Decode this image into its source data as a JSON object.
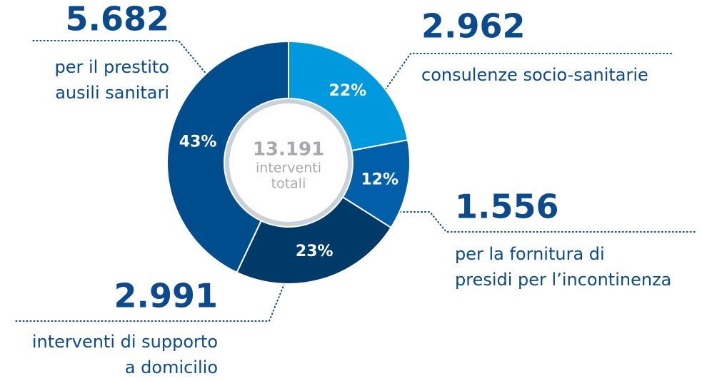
{
  "chart_data": {
    "type": "pie",
    "values": [
      22,
      12,
      23,
      43
    ],
    "value_labels": [
      "22%",
      "12%",
      "23%",
      "43%"
    ],
    "colors": [
      "#0099dd",
      "#005fa8",
      "#003a68",
      "#004d8e"
    ],
    "center_total": "13.191",
    "center_lines": [
      "interventi",
      "totali"
    ],
    "annotations": [
      {
        "number": "2.962",
        "lines": [
          "consulenze socio-sanitarie"
        ]
      },
      {
        "number": "1.556",
        "lines": [
          "per la fornitura di",
          "presidi per l’incontinenza"
        ]
      },
      {
        "number": "2.991",
        "lines": [
          "interventi di supporto",
          "a domicilio"
        ]
      },
      {
        "number": "5.682",
        "lines": [
          "per il prestito",
          "ausili sanitari"
        ]
      }
    ]
  }
}
